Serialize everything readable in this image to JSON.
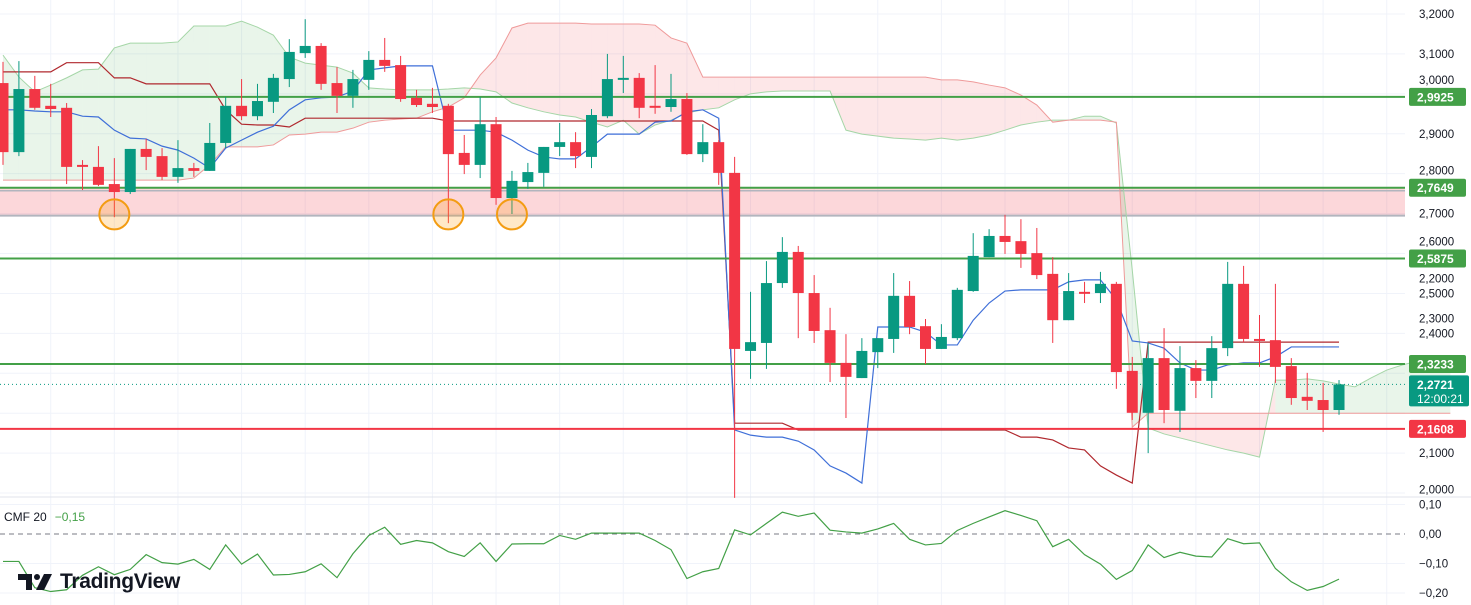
{
  "chart_data": {
    "type": "candlestick",
    "price_axis": {
      "ticks": [
        3.2,
        3.1,
        3.0,
        2.9,
        2.8,
        2.7,
        2.6,
        2.5,
        2.4,
        2.3,
        2.2,
        2.1,
        2.0
      ],
      "tick_labels": [
        "3,2000",
        "3,1000",
        "3,0000",
        "2,9000",
        "2,8000",
        "2,7000",
        "2,6000",
        "2,5000",
        "2,4000",
        "2,3000",
        "2,2000",
        "2,1000",
        "2,0000"
      ],
      "range": [
        2.0,
        3.2
      ]
    },
    "candles_ohlc": [
      [
        3.027,
        3.08,
        2.822,
        2.854
      ],
      [
        2.854,
        3.082,
        2.844,
        3.012
      ],
      [
        3.012,
        3.045,
        2.96,
        2.965
      ],
      [
        2.97,
        3.025,
        2.942,
        2.962
      ],
      [
        2.965,
        2.977,
        2.774,
        2.817
      ],
      [
        2.822,
        2.834,
        2.759,
        2.819
      ],
      [
        2.817,
        2.869,
        2.769,
        2.772
      ],
      [
        2.774,
        2.839,
        2.691,
        2.754
      ],
      [
        2.754,
        2.862,
        2.749,
        2.862
      ],
      [
        2.862,
        2.887,
        2.809,
        2.842
      ],
      [
        2.844,
        2.864,
        2.784,
        2.792
      ],
      [
        2.792,
        2.884,
        2.777,
        2.814
      ],
      [
        2.814,
        2.827,
        2.792,
        2.807
      ],
      [
        2.807,
        2.927,
        2.807,
        2.877
      ],
      [
        2.877,
        2.992,
        2.864,
        2.97
      ],
      [
        2.97,
        3.037,
        2.934,
        2.944
      ],
      [
        2.944,
        3.025,
        2.934,
        2.982
      ],
      [
        2.98,
        3.05,
        2.952,
        3.04
      ],
      [
        3.037,
        3.137,
        3.017,
        3.105
      ],
      [
        3.102,
        3.187,
        3.09,
        3.12
      ],
      [
        3.12,
        3.127,
        3.01,
        3.025
      ],
      [
        3.027,
        3.067,
        2.952,
        2.995
      ],
      [
        2.995,
        3.06,
        2.965,
        3.037
      ],
      [
        3.035,
        3.107,
        3.01,
        3.085
      ],
      [
        3.085,
        3.14,
        3.055,
        3.07
      ],
      [
        3.072,
        3.095,
        2.98,
        2.987
      ],
      [
        2.99,
        3.01,
        2.967,
        2.972
      ],
      [
        2.975,
        3.015,
        2.952,
        2.967
      ],
      [
        2.97,
        2.975,
        2.676,
        2.849
      ],
      [
        2.852,
        2.897,
        2.799,
        2.822
      ],
      [
        2.822,
        2.992,
        2.789,
        2.924
      ],
      [
        2.924,
        2.942,
        2.722,
        2.739
      ],
      [
        2.739,
        2.807,
        2.699,
        2.782
      ],
      [
        2.779,
        2.827,
        2.762,
        2.804
      ],
      [
        2.802,
        2.867,
        2.767,
        2.867
      ],
      [
        2.867,
        2.927,
        2.844,
        2.879
      ],
      [
        2.879,
        2.904,
        2.814,
        2.844
      ],
      [
        2.842,
        2.962,
        2.814,
        2.947
      ],
      [
        2.944,
        3.1,
        2.939,
        3.037
      ],
      [
        3.039,
        3.095,
        3.002,
        3.04
      ],
      [
        3.04,
        3.052,
        2.939,
        2.965
      ],
      [
        2.97,
        3.072,
        2.95,
        2.969
      ],
      [
        2.967,
        3.05,
        2.955,
        2.987
      ],
      [
        2.987,
        3.002,
        2.847,
        2.849
      ],
      [
        2.849,
        2.924,
        2.829,
        2.879
      ],
      [
        2.879,
        2.884,
        2.772,
        2.802
      ],
      [
        2.802,
        2.842,
        1.988,
        2.361
      ],
      [
        2.356,
        2.504,
        2.286,
        2.378
      ],
      [
        2.376,
        2.581,
        2.311,
        2.526
      ],
      [
        2.526,
        2.641,
        2.514,
        2.604
      ],
      [
        2.604,
        2.619,
        2.388,
        2.501
      ],
      [
        2.501,
        2.546,
        2.376,
        2.406
      ],
      [
        2.408,
        2.464,
        2.278,
        2.326
      ],
      [
        2.326,
        2.398,
        2.188,
        2.291
      ],
      [
        2.288,
        2.388,
        2.288,
        2.356
      ],
      [
        2.353,
        2.388,
        2.313,
        2.388
      ],
      [
        2.386,
        2.551,
        2.351,
        2.494
      ],
      [
        2.494,
        2.531,
        2.398,
        2.416
      ],
      [
        2.418,
        2.436,
        2.323,
        2.361
      ],
      [
        2.361,
        2.423,
        2.361,
        2.391
      ],
      [
        2.388,
        2.514,
        2.383,
        2.509
      ],
      [
        2.506,
        2.651,
        2.504,
        2.594
      ],
      [
        2.591,
        2.661,
        2.591,
        2.644
      ],
      [
        2.644,
        2.697,
        2.599,
        2.629
      ],
      [
        2.631,
        2.686,
        2.564,
        2.599
      ],
      [
        2.601,
        2.664,
        2.536,
        2.546
      ],
      [
        2.549,
        2.591,
        2.376,
        2.433
      ],
      [
        2.433,
        2.551,
        2.433,
        2.506
      ],
      [
        2.504,
        2.529,
        2.476,
        2.503
      ],
      [
        2.501,
        2.554,
        2.476,
        2.524
      ],
      [
        2.524,
        2.529,
        2.261,
        2.303
      ],
      [
        2.306,
        2.341,
        2.183,
        2.201
      ],
      [
        2.201,
        2.376,
        2.1,
        2.338
      ],
      [
        2.338,
        2.413,
        2.175,
        2.208
      ],
      [
        2.206,
        2.368,
        2.153,
        2.313
      ],
      [
        2.313,
        2.333,
        2.238,
        2.281
      ],
      [
        2.281,
        2.393,
        2.238,
        2.363
      ],
      [
        2.363,
        2.579,
        2.343,
        2.524
      ],
      [
        2.524,
        2.569,
        2.378,
        2.386
      ],
      [
        2.386,
        2.446,
        2.316,
        2.383
      ],
      [
        2.383,
        2.524,
        2.276,
        2.316
      ],
      [
        2.318,
        2.338,
        2.221,
        2.238
      ],
      [
        2.241,
        2.301,
        2.208,
        2.231
      ],
      [
        2.233,
        2.276,
        2.153,
        2.208
      ],
      [
        2.208,
        2.283,
        2.196,
        2.272
      ]
    ],
    "conversion_line": [
      2.96,
      2.96,
      2.957,
      2.955,
      2.955,
      2.944,
      2.942,
      2.909,
      2.889,
      2.887,
      2.869,
      2.859,
      2.839,
      2.814,
      2.864,
      2.884,
      2.904,
      2.919,
      2.96,
      2.985,
      2.99,
      2.992,
      3.007,
      3.06,
      3.065,
      3.07,
      3.07,
      3.07,
      2.909,
      2.909,
      2.909,
      2.904,
      2.884,
      2.859,
      2.842,
      2.837,
      2.837,
      2.867,
      2.899,
      2.899,
      2.899,
      2.929,
      2.932,
      2.955,
      2.96,
      2.939,
      2.158,
      2.145,
      2.14,
      2.14,
      2.13,
      2.108,
      2.068,
      2.05,
      2.025,
      2.416,
      2.416,
      2.416,
      2.403,
      2.371,
      2.371,
      2.433,
      2.476,
      2.506,
      2.509,
      2.509,
      2.509,
      2.529,
      2.534,
      2.534,
      2.484,
      2.381,
      2.376,
      2.363,
      2.326,
      2.308,
      2.308,
      2.321,
      2.326,
      2.326,
      2.341,
      2.366,
      2.366,
      2.366,
      2.366
    ],
    "base_line": [
      3.055,
      3.055,
      3.055,
      3.055,
      3.078,
      3.078,
      3.078,
      3.04,
      3.04,
      3.025,
      3.025,
      3.025,
      3.025,
      3.025,
      2.96,
      2.924,
      2.922,
      2.922,
      2.917,
      2.939,
      2.939,
      2.939,
      2.939,
      2.939,
      2.939,
      2.939,
      2.939,
      2.939,
      2.932,
      2.932,
      2.932,
      2.932,
      2.932,
      2.932,
      2.932,
      2.932,
      2.932,
      2.932,
      2.932,
      2.932,
      2.932,
      2.932,
      2.932,
      2.932,
      2.932,
      2.909,
      2.175,
      2.175,
      2.175,
      2.175,
      2.158,
      2.158,
      2.158,
      2.158,
      2.158,
      2.158,
      2.158,
      2.158,
      2.158,
      2.158,
      2.158,
      2.158,
      2.158,
      2.158,
      2.14,
      2.14,
      2.133,
      2.113,
      2.108,
      2.068,
      2.045,
      2.025,
      2.378,
      2.378,
      2.378,
      2.378,
      2.378,
      2.378,
      2.378,
      2.378,
      2.378,
      2.378,
      2.378,
      2.378,
      2.378
    ],
    "cloud_span_a": [
      3.097,
      3.042,
      3.005,
      3.022,
      3.04,
      3.06,
      3.062,
      3.115,
      3.127,
      3.127,
      3.127,
      3.13,
      3.17,
      3.17,
      3.17,
      3.182,
      3.167,
      3.147,
      3.092,
      3.077,
      3.072,
      3.067,
      3.052,
      3.015,
      3.012,
      3.01,
      3.01,
      3.01,
      3.012,
      3.015,
      3.012,
      3.005,
      2.977,
      2.965,
      2.955,
      2.947,
      2.942,
      2.929,
      2.917,
      2.934,
      2.899,
      2.922,
      2.934,
      2.952,
      2.96,
      2.965,
      2.985,
      3.0,
      3.005,
      3.007,
      3.007,
      3.007,
      3.007,
      2.909,
      2.899,
      2.894,
      2.889,
      2.887,
      2.884,
      2.889,
      2.884,
      2.889,
      2.897,
      2.909,
      2.922,
      2.929,
      2.934,
      2.934,
      2.944,
      2.944,
      2.927,
      2.559,
      2.163,
      2.148,
      2.138,
      2.128,
      2.118,
      2.108,
      2.1,
      2.09,
      2.283,
      2.283,
      2.286,
      2.281,
      2.273,
      2.266,
      2.288,
      2.308,
      2.321,
      2.331,
      2.333,
      2.333
    ],
    "cloud_span_b": [
      2.784,
      2.784,
      2.784,
      2.784,
      2.784,
      2.784,
      2.784,
      2.784,
      2.784,
      2.784,
      2.784,
      2.784,
      2.789,
      2.822,
      2.867,
      2.867,
      2.867,
      2.872,
      2.897,
      2.899,
      2.904,
      2.904,
      2.914,
      2.929,
      2.934,
      2.937,
      2.939,
      2.955,
      2.967,
      2.99,
      3.047,
      3.09,
      3.165,
      3.177,
      3.177,
      3.177,
      3.177,
      3.175,
      3.175,
      3.175,
      3.175,
      3.172,
      3.14,
      3.127,
      3.042,
      3.042,
      3.042,
      3.042,
      3.042,
      3.042,
      3.042,
      3.042,
      3.042,
      3.042,
      3.042,
      3.042,
      3.042,
      3.042,
      3.042,
      3.035,
      3.035,
      3.03,
      3.022,
      3.015,
      2.997,
      2.972,
      2.929,
      2.934,
      2.934,
      2.934,
      2.929,
      2.165,
      2.2,
      2.2,
      2.2,
      2.2,
      2.2,
      2.2,
      2.2,
      2.2,
      2.2,
      2.2,
      2.2,
      2.2,
      2.2,
      2.2,
      2.2,
      2.2,
      2.2,
      2.2,
      2.2,
      2.2
    ],
    "levels": [
      {
        "price": 2.9925,
        "label": "2,9925",
        "color": "#43a047"
      },
      {
        "price": 2.7649,
        "label": "2,7649",
        "color": "#43a047"
      },
      {
        "price": 2.5875,
        "label": "2,5875",
        "color": "#43a047"
      },
      {
        "price": 2.3233,
        "label": "2,3233",
        "color": "#43a047"
      },
      {
        "price": 2.1608,
        "label": "2,1608",
        "color": "#f23645"
      }
    ],
    "support_zone": {
      "top": 2.7649,
      "bottom": 2.695
    },
    "highlight_circles": [
      {
        "candle": 7,
        "price": 2.698
      },
      {
        "candle": 28,
        "price": 2.698
      },
      {
        "candle": 32,
        "price": 2.698
      }
    ],
    "current_price": {
      "price": 2.2721,
      "label": "2,2721",
      "countdown": "12:00:21"
    },
    "cmf": {
      "name": "CMF 20",
      "value_label": "−0,15",
      "ticks": [
        0.1,
        0,
        -0.1,
        -0.2
      ],
      "tick_labels": [
        "0,10",
        "0,00",
        "−0,10",
        "−0,20"
      ],
      "values": [
        -0.093,
        -0.093,
        -0.182,
        -0.195,
        -0.189,
        -0.14,
        -0.111,
        -0.138,
        -0.12,
        -0.07,
        -0.097,
        -0.102,
        -0.086,
        -0.12,
        -0.037,
        -0.102,
        -0.068,
        -0.139,
        -0.137,
        -0.128,
        -0.101,
        -0.148,
        -0.067,
        -0.005,
        0.023,
        -0.035,
        -0.022,
        -0.03,
        -0.06,
        -0.076,
        -0.03,
        -0.093,
        -0.034,
        -0.033,
        -0.033,
        -0.005,
        -0.018,
        0.003,
        0.003,
        0.003,
        0.003,
        -0.022,
        -0.053,
        -0.151,
        -0.128,
        -0.117,
        0.014,
        -0.003,
        0.036,
        0.074,
        0.06,
        0.071,
        0.013,
        0.007,
        0.003,
        0.017,
        0.036,
        -0.018,
        -0.037,
        -0.032,
        0.012,
        0.036,
        0.058,
        0.079,
        0.063,
        0.045,
        -0.043,
        -0.018,
        -0.07,
        -0.102,
        -0.154,
        -0.124,
        -0.037,
        -0.08,
        -0.062,
        -0.075,
        -0.078,
        -0.016,
        -0.033,
        -0.03,
        -0.117,
        -0.162,
        -0.191,
        -0.178,
        -0.153
      ]
    }
  },
  "colors": {
    "up": "#089981",
    "down": "#f23645",
    "conversion": "#3f6fd8",
    "base": "#b0282e",
    "cloud_up": "#a5d6a7",
    "cloud_down": "#ef9a9a",
    "cmf": "#43a047"
  },
  "branding": {
    "logo_text": "TradingView"
  }
}
